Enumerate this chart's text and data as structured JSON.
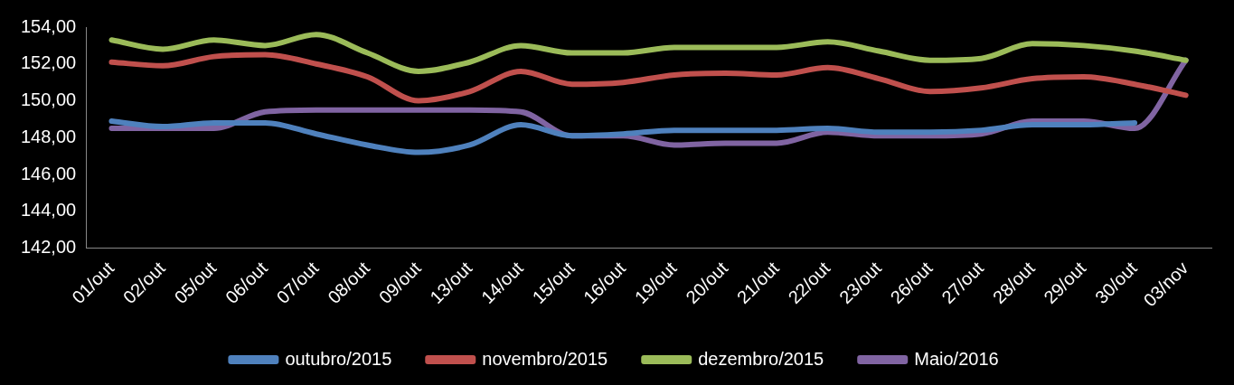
{
  "chart_data": {
    "type": "line",
    "categories": [
      "01/out",
      "02/out",
      "05/out",
      "06/out",
      "07/out",
      "08/out",
      "09/out",
      "13/out",
      "14/out",
      "15/out",
      "16/out",
      "19/out",
      "20/out",
      "21/out",
      "22/out",
      "23/out",
      "26/out",
      "27/out",
      "28/out",
      "29/out",
      "30/out",
      "03/nov"
    ],
    "ylim": [
      142,
      154
    ],
    "yticks": [
      {
        "value": 142,
        "label": "142,00"
      },
      {
        "value": 144,
        "label": "144,00"
      },
      {
        "value": 146,
        "label": "146,00"
      },
      {
        "value": 148,
        "label": "148,00"
      },
      {
        "value": 150,
        "label": "150,00"
      },
      {
        "value": 152,
        "label": "152,00"
      },
      {
        "value": 154,
        "label": "154,00"
      }
    ],
    "grid": false,
    "legend": "bottom",
    "marker": "none",
    "series": [
      {
        "name": "outubro/2015",
        "color": "#4f81bd",
        "values": [
          148.9,
          148.6,
          148.8,
          148.8,
          148.2,
          147.6,
          147.2,
          147.6,
          148.7,
          148.1,
          148.2,
          148.4,
          148.4,
          148.4,
          148.5,
          148.3,
          148.3,
          148.4,
          148.7,
          148.7,
          148.8,
          null
        ]
      },
      {
        "name": "novembro/2015",
        "color": "#c0504d",
        "values": [
          152.1,
          151.9,
          152.4,
          152.5,
          152.0,
          151.3,
          150.0,
          150.5,
          151.6,
          150.9,
          151.0,
          151.4,
          151.5,
          151.4,
          151.8,
          151.2,
          150.5,
          150.7,
          151.2,
          151.3,
          150.9,
          150.3
        ]
      },
      {
        "name": "dezembro/2015",
        "color": "#9bbb59",
        "values": [
          153.3,
          152.8,
          153.3,
          153.0,
          153.6,
          152.6,
          151.6,
          152.1,
          153.0,
          152.6,
          152.6,
          152.9,
          152.9,
          152.9,
          153.2,
          152.7,
          152.2,
          152.3,
          153.1,
          153.0,
          152.7,
          152.2
        ]
      },
      {
        "name": "Maio/2016",
        "color": "#8064a2",
        "values": [
          148.5,
          148.5,
          148.5,
          149.4,
          149.5,
          149.5,
          149.5,
          149.5,
          149.4,
          148.1,
          148.1,
          147.6,
          147.7,
          147.7,
          148.3,
          148.1,
          148.1,
          148.2,
          148.9,
          148.9,
          148.5,
          152.2
        ]
      }
    ]
  }
}
